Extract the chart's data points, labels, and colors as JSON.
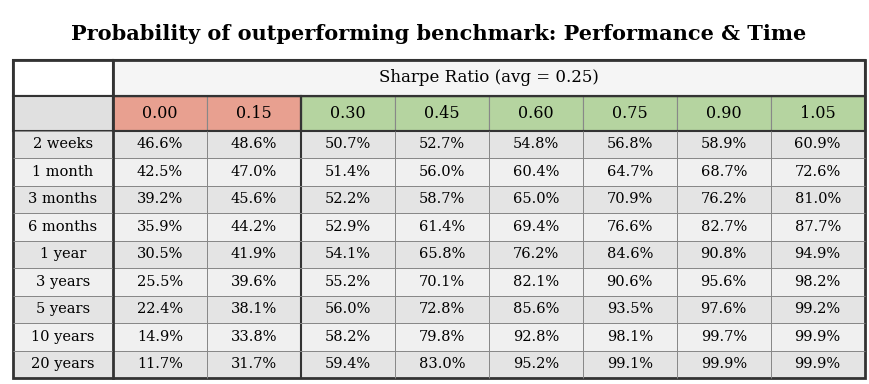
{
  "title": "Probability of outperforming benchmark: Performance & Time",
  "subtitle": "Sharpe Ratio (avg = 0.25)",
  "col_headers": [
    "0.00",
    "0.15",
    "0.30",
    "0.45",
    "0.60",
    "0.75",
    "0.90",
    "1.05"
  ],
  "row_headers": [
    "2 weeks",
    "1 month",
    "3 months",
    "6 months",
    "1 year",
    "3 years",
    "5 years",
    "10 years",
    "20 years"
  ],
  "table_data": [
    [
      "46.6%",
      "48.6%",
      "50.7%",
      "52.7%",
      "54.8%",
      "56.8%",
      "58.9%",
      "60.9%"
    ],
    [
      "42.5%",
      "47.0%",
      "51.4%",
      "56.0%",
      "60.4%",
      "64.7%",
      "68.7%",
      "72.6%"
    ],
    [
      "39.2%",
      "45.6%",
      "52.2%",
      "58.7%",
      "65.0%",
      "70.9%",
      "76.2%",
      "81.0%"
    ],
    [
      "35.9%",
      "44.2%",
      "52.9%",
      "61.4%",
      "69.4%",
      "76.6%",
      "82.7%",
      "87.7%"
    ],
    [
      "30.5%",
      "41.9%",
      "54.1%",
      "65.8%",
      "76.2%",
      "84.6%",
      "90.8%",
      "94.9%"
    ],
    [
      "25.5%",
      "39.6%",
      "55.2%",
      "70.1%",
      "82.1%",
      "90.6%",
      "95.6%",
      "98.2%"
    ],
    [
      "22.4%",
      "38.1%",
      "56.0%",
      "72.8%",
      "85.6%",
      "93.5%",
      "97.6%",
      "99.2%"
    ],
    [
      "14.9%",
      "33.8%",
      "58.2%",
      "79.8%",
      "92.8%",
      "98.1%",
      "99.7%",
      "99.9%"
    ],
    [
      "11.7%",
      "31.7%",
      "59.4%",
      "83.0%",
      "95.2%",
      "99.1%",
      "99.9%",
      "99.9%"
    ]
  ],
  "col_header_colors": [
    "#e8a090",
    "#e8a090",
    "#b5d4a0",
    "#b5d4a0",
    "#b5d4a0",
    "#b5d4a0",
    "#b5d4a0",
    "#b5d4a0"
  ],
  "subtitle_bg": "#f5f5f5",
  "row_label_bg": "#d8d8d8",
  "row_bg_even": "#e4e4e4",
  "row_bg_odd": "#f0f0f0",
  "outer_bg": "#ffffff",
  "heavy_border": "#333333",
  "light_border": "#888888",
  "title_fontsize": 15,
  "cell_fontsize": 10.5,
  "header_fontsize": 11.5,
  "subtitle_fontsize": 12
}
